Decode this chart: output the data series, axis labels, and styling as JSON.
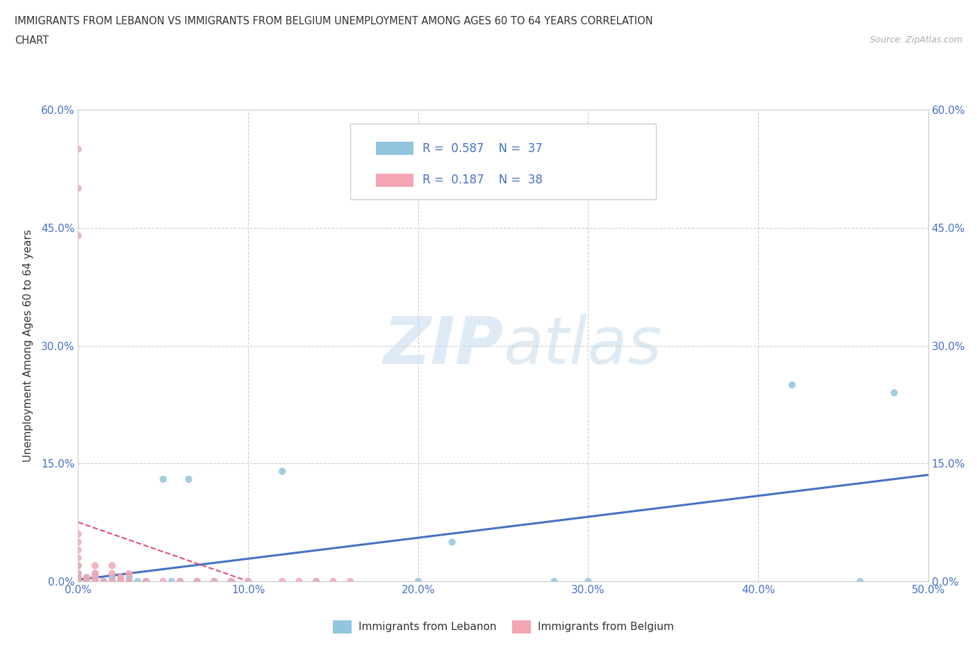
{
  "title_line1": "IMMIGRANTS FROM LEBANON VS IMMIGRANTS FROM BELGIUM UNEMPLOYMENT AMONG AGES 60 TO 64 YEARS CORRELATION",
  "title_line2": "CHART",
  "source_text": "Source: ZipAtlas.com",
  "ylabel_label": "Unemployment Among Ages 60 to 64 years",
  "xlim": [
    0.0,
    0.5
  ],
  "ylim": [
    0.0,
    0.6
  ],
  "color_lebanon": "#92c5de",
  "color_belgium": "#f4a6b2",
  "color_trendline_lebanon": "#4472c4",
  "color_trendline_belgium": "#e05070",
  "watermark_zip": "ZIP",
  "watermark_atlas": "atlas",
  "legend_label1": "Immigrants from Lebanon",
  "legend_label2": "Immigrants from Belgium",
  "lebanon_x": [
    0.0,
    0.0,
    0.0,
    0.0,
    0.0,
    0.005,
    0.005,
    0.01,
    0.01,
    0.01,
    0.01,
    0.015,
    0.02,
    0.02,
    0.025,
    0.025,
    0.03,
    0.03,
    0.035,
    0.04,
    0.05,
    0.055,
    0.06,
    0.065,
    0.07,
    0.08,
    0.09,
    0.1,
    0.12,
    0.14,
    0.2,
    0.22,
    0.28,
    0.3,
    0.42,
    0.46,
    0.48
  ],
  "lebanon_y": [
    0.0,
    0.0,
    0.005,
    0.01,
    0.02,
    0.0,
    0.005,
    0.0,
    0.0,
    0.005,
    0.01,
    0.0,
    0.0,
    0.005,
    0.0,
    0.005,
    0.0,
    0.005,
    0.0,
    0.0,
    0.13,
    0.0,
    0.0,
    0.13,
    0.0,
    0.0,
    0.0,
    0.0,
    0.14,
    0.0,
    0.0,
    0.05,
    0.0,
    0.0,
    0.25,
    0.0,
    0.24
  ],
  "belgium_x": [
    0.0,
    0.0,
    0.0,
    0.0,
    0.0,
    0.0,
    0.0,
    0.0,
    0.0,
    0.0,
    0.0,
    0.0,
    0.005,
    0.005,
    0.01,
    0.01,
    0.01,
    0.01,
    0.015,
    0.02,
    0.02,
    0.02,
    0.025,
    0.025,
    0.03,
    0.03,
    0.04,
    0.05,
    0.06,
    0.07,
    0.08,
    0.09,
    0.1,
    0.12,
    0.13,
    0.14,
    0.15,
    0.16
  ],
  "belgium_y": [
    0.0,
    0.0,
    0.005,
    0.01,
    0.02,
    0.03,
    0.04,
    0.05,
    0.06,
    0.44,
    0.5,
    0.55,
    0.0,
    0.005,
    0.0,
    0.005,
    0.01,
    0.02,
    0.0,
    0.0,
    0.01,
    0.02,
    0.0,
    0.005,
    0.0,
    0.01,
    0.0,
    0.0,
    0.0,
    0.0,
    0.0,
    0.0,
    0.0,
    0.0,
    0.0,
    0.0,
    0.0,
    0.0
  ]
}
